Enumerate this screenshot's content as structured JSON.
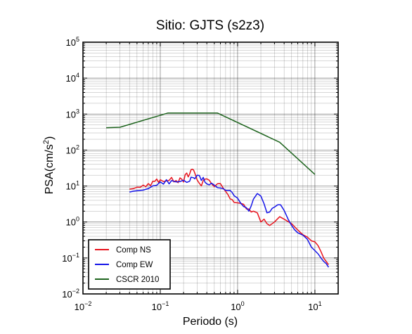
{
  "chart_data": {
    "type": "line",
    "title": "Sitio: GJTS (s2z3)",
    "xlabel": "Periodo (s)",
    "ylabel_base": "PSA(cm/s",
    "ylabel_sup": "2",
    "ylabel_close": ")",
    "x_scale": "log",
    "y_scale": "log",
    "xlim": [
      0.01,
      20
    ],
    "ylim": [
      0.01,
      100000
    ],
    "grid": true,
    "legend_position": "bottom-left",
    "x_ticks": [
      {
        "value": 0.01,
        "base": "10",
        "exp": "−2"
      },
      {
        "value": 0.1,
        "base": "10",
        "exp": "−1"
      },
      {
        "value": 1,
        "base": "10",
        "exp": "0"
      },
      {
        "value": 10,
        "base": "10",
        "exp": "1"
      }
    ],
    "y_ticks": [
      {
        "value": 0.01,
        "base": "10",
        "exp": "−2"
      },
      {
        "value": 0.1,
        "base": "10",
        "exp": "−1"
      },
      {
        "value": 1,
        "base": "10",
        "exp": "0"
      },
      {
        "value": 10,
        "base": "10",
        "exp": "1"
      },
      {
        "value": 100,
        "base": "10",
        "exp": "2"
      },
      {
        "value": 1000,
        "base": "10",
        "exp": "3"
      },
      {
        "value": 10000,
        "base": "10",
        "exp": "4"
      },
      {
        "value": 100000,
        "base": "10",
        "exp": "5"
      }
    ],
    "series": [
      {
        "name": "Comp NS",
        "color": "#e8141e",
        "points": [
          [
            0.04,
            8.2
          ],
          [
            0.045,
            8.5
          ],
          [
            0.05,
            9.3
          ],
          [
            0.055,
            9.2
          ],
          [
            0.06,
            10.6
          ],
          [
            0.065,
            9.6
          ],
          [
            0.07,
            11.7
          ],
          [
            0.075,
            10.2
          ],
          [
            0.08,
            13.6
          ],
          [
            0.085,
            13.5
          ],
          [
            0.09,
            15.7
          ],
          [
            0.095,
            12.7
          ],
          [
            0.1,
            14.9
          ],
          [
            0.11,
            13.4
          ],
          [
            0.12,
            13.9
          ],
          [
            0.13,
            14.3
          ],
          [
            0.14,
            17.4
          ],
          [
            0.15,
            13.0
          ],
          [
            0.16,
            14.2
          ],
          [
            0.17,
            12.4
          ],
          [
            0.18,
            16.8
          ],
          [
            0.19,
            15.4
          ],
          [
            0.2,
            12.9
          ],
          [
            0.21,
            20.8
          ],
          [
            0.22,
            23.0
          ],
          [
            0.23,
            17.9
          ],
          [
            0.24,
            21.8
          ],
          [
            0.25,
            28.4
          ],
          [
            0.26,
            29.4
          ],
          [
            0.27,
            27.7
          ],
          [
            0.28,
            22.8
          ],
          [
            0.3,
            14.8
          ],
          [
            0.32,
            11.9
          ],
          [
            0.34,
            10.1
          ],
          [
            0.36,
            14.4
          ],
          [
            0.38,
            15.6
          ],
          [
            0.4,
            15.8
          ],
          [
            0.43,
            14.5
          ],
          [
            0.46,
            11.7
          ],
          [
            0.5,
            9.6
          ],
          [
            0.55,
            11.6
          ],
          [
            0.6,
            11.7
          ],
          [
            0.65,
            8.8
          ],
          [
            0.7,
            7.1
          ],
          [
            0.75,
            5.8
          ],
          [
            0.8,
            4.4
          ],
          [
            0.85,
            4.2
          ],
          [
            0.9,
            3.5
          ],
          [
            1.0,
            3.4
          ],
          [
            1.1,
            3.3
          ],
          [
            1.2,
            3.1
          ],
          [
            1.3,
            2.3
          ],
          [
            1.4,
            2.3
          ],
          [
            1.5,
            1.9
          ],
          [
            1.6,
            2.0
          ],
          [
            1.8,
            1.8
          ],
          [
            2.0,
            1.0
          ],
          [
            2.2,
            1.2
          ],
          [
            2.4,
            0.9
          ],
          [
            2.6,
            0.8
          ],
          [
            3.0,
            1.0
          ],
          [
            3.5,
            1.4
          ],
          [
            4.0,
            1.2
          ],
          [
            5.0,
            0.9
          ],
          [
            6.0,
            0.6
          ],
          [
            7.0,
            0.44
          ],
          [
            8.0,
            0.38
          ],
          [
            9.0,
            0.3
          ],
          [
            10.0,
            0.28
          ],
          [
            11.0,
            0.22
          ],
          [
            12.0,
            0.15
          ],
          [
            13.0,
            0.1
          ],
          [
            15.0,
            0.065
          ]
        ]
      },
      {
        "name": "Comp EW",
        "color": "#1414e8",
        "points": [
          [
            0.04,
            6.8
          ],
          [
            0.045,
            7.2
          ],
          [
            0.05,
            7.4
          ],
          [
            0.06,
            7.7
          ],
          [
            0.07,
            8.5
          ],
          [
            0.08,
            10.1
          ],
          [
            0.09,
            10.5
          ],
          [
            0.1,
            13.0
          ],
          [
            0.11,
            11.3
          ],
          [
            0.12,
            15.0
          ],
          [
            0.13,
            11.5
          ],
          [
            0.14,
            14.2
          ],
          [
            0.16,
            13.0
          ],
          [
            0.18,
            13.3
          ],
          [
            0.2,
            14.5
          ],
          [
            0.22,
            12.6
          ],
          [
            0.24,
            13.6
          ],
          [
            0.25,
            17.6
          ],
          [
            0.27,
            17.0
          ],
          [
            0.28,
            15.9
          ],
          [
            0.3,
            20.0
          ],
          [
            0.32,
            19.7
          ],
          [
            0.34,
            14.3
          ],
          [
            0.36,
            17.4
          ],
          [
            0.38,
            12.7
          ],
          [
            0.4,
            11.5
          ],
          [
            0.43,
            10.8
          ],
          [
            0.46,
            12.0
          ],
          [
            0.5,
            10.6
          ],
          [
            0.55,
            9.0
          ],
          [
            0.6,
            8.8
          ],
          [
            0.65,
            8.5
          ],
          [
            0.7,
            7.6
          ],
          [
            0.8,
            7.6
          ],
          [
            0.85,
            6.6
          ],
          [
            0.9,
            5.4
          ],
          [
            1.0,
            4.6
          ],
          [
            1.1,
            3.3
          ],
          [
            1.2,
            2.7
          ],
          [
            1.3,
            2.5
          ],
          [
            1.4,
            2.0
          ],
          [
            1.5,
            2.8
          ],
          [
            1.6,
            4.3
          ],
          [
            1.8,
            6.2
          ],
          [
            2.0,
            5.3
          ],
          [
            2.2,
            3.2
          ],
          [
            2.4,
            1.8
          ],
          [
            2.6,
            1.9
          ],
          [
            2.8,
            2.4
          ],
          [
            3.0,
            2.6
          ],
          [
            3.3,
            3.0
          ],
          [
            3.6,
            3.0
          ],
          [
            4.0,
            2.1
          ],
          [
            4.5,
            1.2
          ],
          [
            5.0,
            0.8
          ],
          [
            5.5,
            0.6
          ],
          [
            6.0,
            0.5
          ],
          [
            7.0,
            0.43
          ],
          [
            8.0,
            0.33
          ],
          [
            9.0,
            0.2
          ],
          [
            10.0,
            0.16
          ],
          [
            11.0,
            0.13
          ],
          [
            12.0,
            0.1
          ],
          [
            13.0,
            0.08
          ],
          [
            14.0,
            0.07
          ],
          [
            15.0,
            0.055
          ]
        ]
      },
      {
        "name": "CSCR 2010",
        "color": "#1e641e",
        "points": [
          [
            0.02,
            420
          ],
          [
            0.03,
            430
          ],
          [
            0.125,
            1070
          ],
          [
            0.55,
            1070
          ],
          [
            3.5,
            165
          ],
          [
            10,
            21
          ]
        ]
      }
    ]
  }
}
